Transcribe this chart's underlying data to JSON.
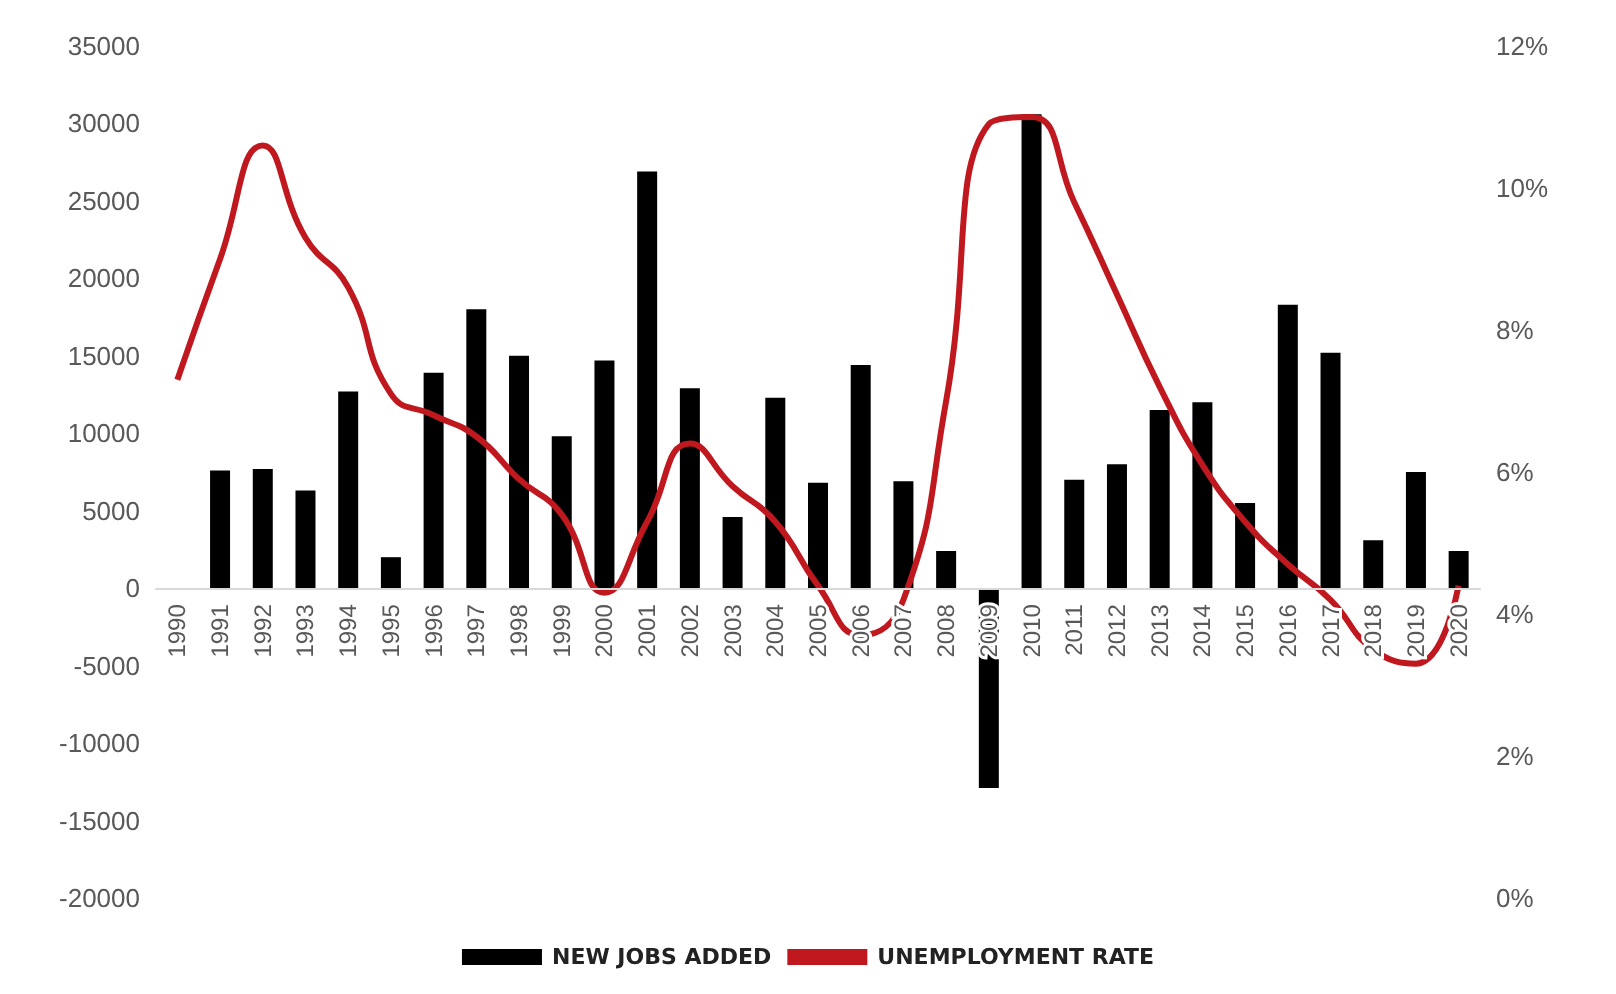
{
  "chart_data": {
    "type": "bar",
    "categories": [
      "1990",
      "1991",
      "1992",
      "1993",
      "1994",
      "1995",
      "1996",
      "1997",
      "1998",
      "1999",
      "2000",
      "2001",
      "2002",
      "2003",
      "2004",
      "2005",
      "2006",
      "2007",
      "2008",
      "2009",
      "2010",
      "2011",
      "2012",
      "2013",
      "2014",
      "2015",
      "2016",
      "2017",
      "2018",
      "2019",
      "2020"
    ],
    "series": [
      {
        "name": "NEW JOBS ADDED",
        "color": "#000000",
        "values": [
          null,
          7600,
          7700,
          6300,
          12700,
          2000,
          13900,
          18000,
          15000,
          9800,
          14700,
          26900,
          12900,
          4600,
          12300,
          6800,
          14400,
          6900,
          2400,
          -12900,
          30600,
          7000,
          8000,
          11500,
          12000,
          5500,
          18300,
          15200,
          3100,
          7500,
          2400
        ]
      },
      {
        "name": "UNEMPLOYMENT RATE",
        "type": "line",
        "axis": "y2",
        "color": "#c0181f",
        "values": [
          7.3,
          9.0,
          10.6,
          9.3,
          8.6,
          7.1,
          6.8,
          6.5,
          5.9,
          5.4,
          4.3,
          5.3,
          6.4,
          5.8,
          5.3,
          4.4,
          3.7,
          4.2,
          7.0,
          10.9,
          11.0,
          9.8,
          8.5,
          7.2,
          6.1,
          5.3,
          4.7,
          4.2,
          3.5,
          3.3,
          4.4
        ]
      }
    ],
    "ylim": [
      -20000,
      35000
    ],
    "yticks": [
      -20000,
      -15000,
      -10000,
      -5000,
      0,
      5000,
      10000,
      15000,
      20000,
      25000,
      30000,
      35000
    ],
    "y2lim": [
      0,
      12
    ],
    "y2ticks": [
      {
        "value": 0,
        "label": "0%"
      },
      {
        "value": 2,
        "label": "2%"
      },
      {
        "value": 4,
        "label": "4%"
      },
      {
        "value": 6,
        "label": "6%"
      },
      {
        "value": 8,
        "label": "8%"
      },
      {
        "value": 10,
        "label": "10%"
      },
      {
        "value": 12,
        "label": "12%"
      }
    ],
    "grid": false,
    "legend": "bottom",
    "marker": "none",
    "line_style": "solid"
  }
}
